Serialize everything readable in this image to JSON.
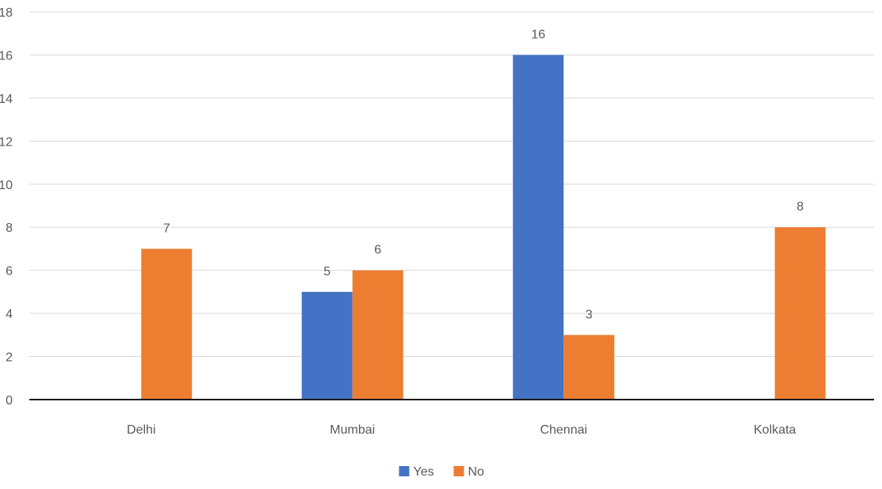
{
  "chart_data": {
    "type": "bar",
    "title": "",
    "xlabel": "",
    "ylabel": "",
    "categories": [
      "Delhi",
      "Mumbai",
      "Chennai",
      "Kolkata"
    ],
    "series": [
      {
        "name": "Yes",
        "color": "#4472C4",
        "values": [
          null,
          5,
          16,
          null
        ]
      },
      {
        "name": "No",
        "color": "#ED7D31",
        "values": [
          7,
          6,
          3,
          8
        ]
      }
    ],
    "ylim": [
      0,
      18
    ],
    "yticks": [
      0,
      2,
      4,
      6,
      8,
      10,
      12,
      14,
      16,
      18
    ],
    "grid": true,
    "data_labels": true,
    "legend_position": "bottom"
  }
}
